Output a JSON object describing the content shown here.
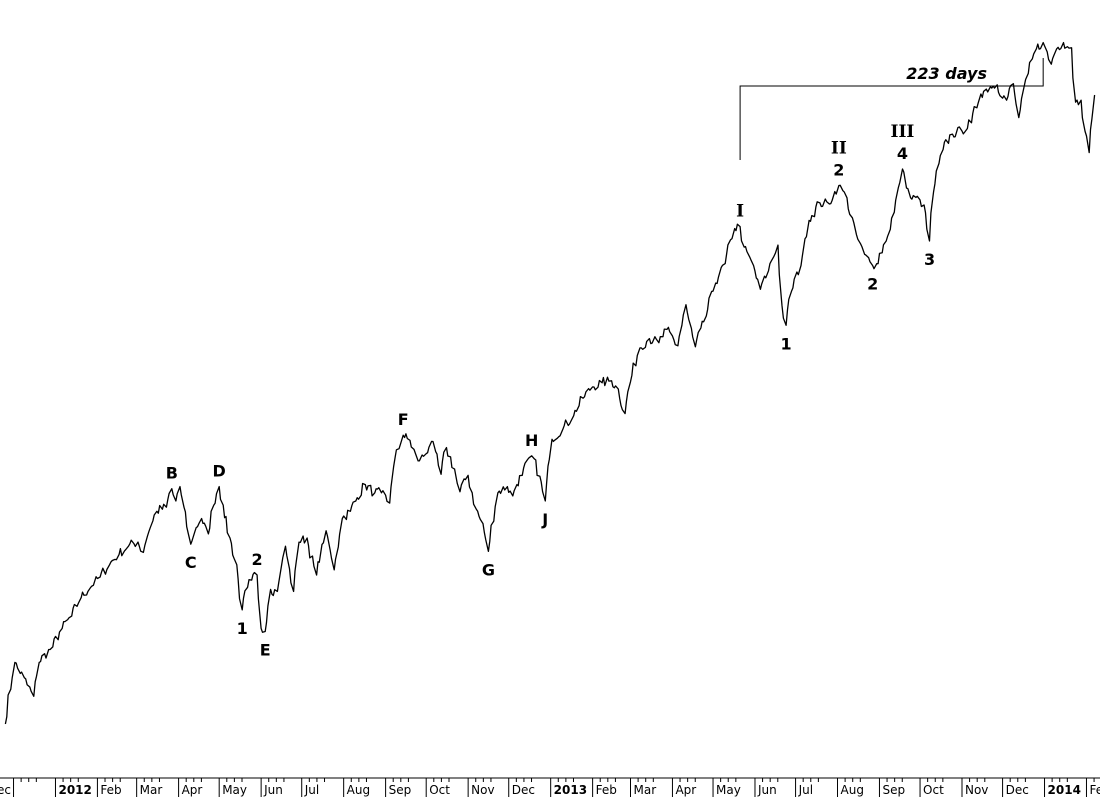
{
  "chart_data": {
    "type": "line",
    "title": "",
    "xlabel": "",
    "ylabel": "",
    "grid": false,
    "x_tick_labels": [
      {
        "date": "2011-12-01",
        "label": "ec",
        "bold": false
      },
      {
        "date": "2012-01-01",
        "label": "2012",
        "bold": true
      },
      {
        "date": "2012-02-01",
        "label": "Feb",
        "bold": false
      },
      {
        "date": "2012-03-01",
        "label": "Mar",
        "bold": false
      },
      {
        "date": "2012-04-01",
        "label": "Apr",
        "bold": false
      },
      {
        "date": "2012-05-01",
        "label": "May",
        "bold": false
      },
      {
        "date": "2012-06-01",
        "label": "Jun",
        "bold": false
      },
      {
        "date": "2012-07-01",
        "label": "Jul",
        "bold": false
      },
      {
        "date": "2012-08-01",
        "label": "Aug",
        "bold": false
      },
      {
        "date": "2012-09-01",
        "label": "Sep",
        "bold": false
      },
      {
        "date": "2012-10-01",
        "label": "Oct",
        "bold": false
      },
      {
        "date": "2012-11-01",
        "label": "Nov",
        "bold": false
      },
      {
        "date": "2012-12-01",
        "label": "Dec",
        "bold": false
      },
      {
        "date": "2013-01-01",
        "label": "2013",
        "bold": true
      },
      {
        "date": "2013-02-01",
        "label": "Feb",
        "bold": false
      },
      {
        "date": "2013-03-01",
        "label": "Mar",
        "bold": false
      },
      {
        "date": "2013-04-01",
        "label": "Apr",
        "bold": false
      },
      {
        "date": "2013-05-01",
        "label": "May",
        "bold": false
      },
      {
        "date": "2013-06-01",
        "label": "Jun",
        "bold": false
      },
      {
        "date": "2013-07-01",
        "label": "Jul",
        "bold": false
      },
      {
        "date": "2013-08-01",
        "label": "Aug",
        "bold": false
      },
      {
        "date": "2013-09-01",
        "label": "Sep",
        "bold": false
      },
      {
        "date": "2013-10-01",
        "label": "Oct",
        "bold": false
      },
      {
        "date": "2013-11-01",
        "label": "Nov",
        "bold": false
      },
      {
        "date": "2013-12-01",
        "label": "Dec",
        "bold": false
      },
      {
        "date": "2014-01-01",
        "label": "2014",
        "bold": true
      },
      {
        "date": "2014-02-01",
        "label": "Fe",
        "bold": false
      }
    ],
    "series": [
      {
        "values": [
          [
            "2011-11-25",
            1185
          ],
          [
            "2011-12-02",
            1245
          ],
          [
            "2011-12-09",
            1230
          ],
          [
            "2011-12-16",
            1212
          ],
          [
            "2011-12-20",
            1245
          ],
          [
            "2011-12-30",
            1260
          ],
          [
            "2012-01-06",
            1278
          ],
          [
            "2012-01-13",
            1290
          ],
          [
            "2012-01-20",
            1308
          ],
          [
            "2012-01-27",
            1318
          ],
          [
            "2012-02-03",
            1328
          ],
          [
            "2012-02-10",
            1340
          ],
          [
            "2012-02-17",
            1350
          ],
          [
            "2012-02-24",
            1358
          ],
          [
            "2012-03-02",
            1362
          ],
          [
            "2012-03-06",
            1352
          ],
          [
            "2012-03-09",
            1368
          ],
          [
            "2012-03-16",
            1392
          ],
          [
            "2012-03-23",
            1396
          ],
          [
            "2012-03-27",
            1414
          ],
          [
            "2012-03-30",
            1402
          ],
          [
            "2012-04-02",
            1416
          ],
          [
            "2012-04-05",
            1396
          ],
          [
            "2012-04-10",
            1360
          ],
          [
            "2012-04-13",
            1372
          ],
          [
            "2012-04-18",
            1385
          ],
          [
            "2012-04-23",
            1370
          ],
          [
            "2012-04-27",
            1398
          ],
          [
            "2012-05-01",
            1416
          ],
          [
            "2012-05-04",
            1398
          ],
          [
            "2012-05-09",
            1366
          ],
          [
            "2012-05-14",
            1340
          ],
          [
            "2012-05-18",
            1296
          ],
          [
            "2012-05-22",
            1318
          ],
          [
            "2012-05-25",
            1325
          ],
          [
            "2012-05-29",
            1330
          ],
          [
            "2012-06-01",
            1278
          ],
          [
            "2012-06-04",
            1275
          ],
          [
            "2012-06-08",
            1316
          ],
          [
            "2012-06-13",
            1314
          ],
          [
            "2012-06-19",
            1358
          ],
          [
            "2012-06-22",
            1336
          ],
          [
            "2012-06-25",
            1314
          ],
          [
            "2012-06-29",
            1362
          ],
          [
            "2012-07-05",
            1366
          ],
          [
            "2012-07-12",
            1330
          ],
          [
            "2012-07-19",
            1373
          ],
          [
            "2012-07-25",
            1335
          ],
          [
            "2012-07-31",
            1385
          ],
          [
            "2012-08-06",
            1392
          ],
          [
            "2012-08-10",
            1402
          ],
          [
            "2012-08-17",
            1418
          ],
          [
            "2012-08-24",
            1410
          ],
          [
            "2012-08-29",
            1410
          ],
          [
            "2012-09-04",
            1400
          ],
          [
            "2012-09-07",
            1436
          ],
          [
            "2012-09-14",
            1466
          ],
          [
            "2012-09-19",
            1461
          ],
          [
            "2012-09-25",
            1441
          ],
          [
            "2012-10-01",
            1448
          ],
          [
            "2012-10-05",
            1460
          ],
          [
            "2012-10-08",
            1450
          ],
          [
            "2012-10-12",
            1428
          ],
          [
            "2012-10-16",
            1454
          ],
          [
            "2012-10-22",
            1433
          ],
          [
            "2012-10-26",
            1411
          ],
          [
            "2012-11-01",
            1427
          ],
          [
            "2012-11-07",
            1394
          ],
          [
            "2012-11-12",
            1380
          ],
          [
            "2012-11-16",
            1353
          ],
          [
            "2012-11-23",
            1410
          ],
          [
            "2012-11-30",
            1416
          ],
          [
            "2012-12-04",
            1407
          ],
          [
            "2012-12-07",
            1418
          ],
          [
            "2012-12-11",
            1427
          ],
          [
            "2012-12-18",
            1446
          ],
          [
            "2012-12-20",
            1443
          ],
          [
            "2012-12-24",
            1426
          ],
          [
            "2012-12-28",
            1402
          ],
          [
            "2013-01-02",
            1462
          ],
          [
            "2013-01-10",
            1472
          ],
          [
            "2013-01-18",
            1485
          ],
          [
            "2013-01-25",
            1502
          ],
          [
            "2013-02-01",
            1513
          ],
          [
            "2013-02-08",
            1517
          ],
          [
            "2013-02-15",
            1519
          ],
          [
            "2013-02-20",
            1511
          ],
          [
            "2013-02-25",
            1487
          ],
          [
            "2013-03-01",
            1518
          ],
          [
            "2013-03-08",
            1551
          ],
          [
            "2013-03-15",
            1560
          ],
          [
            "2013-03-22",
            1556
          ],
          [
            "2013-03-28",
            1569
          ],
          [
            "2013-04-05",
            1553
          ],
          [
            "2013-04-11",
            1593
          ],
          [
            "2013-04-18",
            1552
          ],
          [
            "2013-04-26",
            1582
          ],
          [
            "2013-05-03",
            1614
          ],
          [
            "2013-05-10",
            1633
          ],
          [
            "2013-05-17",
            1667
          ],
          [
            "2013-05-21",
            1669
          ],
          [
            "2013-05-24",
            1649
          ],
          [
            "2013-05-31",
            1631
          ],
          [
            "2013-06-05",
            1608
          ],
          [
            "2013-06-11",
            1626
          ],
          [
            "2013-06-18",
            1651
          ],
          [
            "2013-06-21",
            1592
          ],
          [
            "2013-06-24",
            1573
          ],
          [
            "2013-06-28",
            1606
          ],
          [
            "2013-07-05",
            1631
          ],
          [
            "2013-07-11",
            1675
          ],
          [
            "2013-07-19",
            1692
          ],
          [
            "2013-07-26",
            1691
          ],
          [
            "2013-08-02",
            1709
          ],
          [
            "2013-08-08",
            1697
          ],
          [
            "2013-08-15",
            1661
          ],
          [
            "2013-08-21",
            1642
          ],
          [
            "2013-08-27",
            1631
          ],
          [
            "2013-08-30",
            1633
          ],
          [
            "2013-09-06",
            1655
          ],
          [
            "2013-09-12",
            1683
          ],
          [
            "2013-09-18",
            1725
          ],
          [
            "2013-09-24",
            1697
          ],
          [
            "2013-10-01",
            1695
          ],
          [
            "2013-10-04",
            1690
          ],
          [
            "2013-10-08",
            1655
          ],
          [
            "2013-10-11",
            1703
          ],
          [
            "2013-10-18",
            1744
          ],
          [
            "2013-10-25",
            1759
          ],
          [
            "2013-11-01",
            1762
          ],
          [
            "2013-11-08",
            1770
          ],
          [
            "2013-11-15",
            1798
          ],
          [
            "2013-11-22",
            1805
          ],
          [
            "2013-11-27",
            1807
          ],
          [
            "2013-12-04",
            1792
          ],
          [
            "2013-12-09",
            1808
          ],
          [
            "2013-12-13",
            1775
          ],
          [
            "2013-12-20",
            1818
          ],
          [
            "2013-12-26",
            1842
          ],
          [
            "2013-12-31",
            1848
          ],
          [
            "2014-01-06",
            1827
          ],
          [
            "2014-01-10",
            1842
          ],
          [
            "2014-01-15",
            1848
          ],
          [
            "2014-01-21",
            1843
          ],
          [
            "2014-01-24",
            1790
          ],
          [
            "2014-01-28",
            1792
          ],
          [
            "2014-02-03",
            1741
          ],
          [
            "2014-02-07",
            1797
          ]
        ]
      }
    ],
    "ylim": [
      1150,
      1870
    ],
    "annotations": [
      {
        "label": "B",
        "date": "2012-03-27",
        "value": 1414,
        "position": "above",
        "style": "wave"
      },
      {
        "label": "C",
        "date": "2012-04-10",
        "value": 1360,
        "position": "below",
        "style": "wave"
      },
      {
        "label": "D",
        "date": "2012-05-01",
        "value": 1416,
        "position": "above",
        "style": "wave"
      },
      {
        "label": "1",
        "date": "2012-05-18",
        "value": 1296,
        "position": "below",
        "style": "wave"
      },
      {
        "label": "2",
        "date": "2012-05-29",
        "value": 1330,
        "position": "above",
        "style": "wave"
      },
      {
        "label": "E",
        "date": "2012-06-04",
        "value": 1275,
        "position": "below",
        "style": "wave"
      },
      {
        "label": "F",
        "date": "2012-09-14",
        "value": 1466,
        "position": "above",
        "style": "wave"
      },
      {
        "label": "G",
        "date": "2012-11-16",
        "value": 1353,
        "position": "below",
        "style": "wave"
      },
      {
        "label": "H",
        "date": "2012-12-18",
        "value": 1446,
        "position": "above",
        "style": "wave"
      },
      {
        "label": "J",
        "date": "2012-12-28",
        "value": 1402,
        "position": "below",
        "style": "wave"
      },
      {
        "label": "I",
        "date": "2013-05-21",
        "value": 1669,
        "position": "above",
        "style": "roman"
      },
      {
        "label": "1",
        "date": "2013-06-24",
        "value": 1573,
        "position": "below",
        "style": "wave"
      },
      {
        "label": "II",
        "date": "2013-08-02",
        "value": 1709,
        "position": "above-2",
        "style": "roman"
      },
      {
        "label": "2",
        "date": "2013-08-02",
        "value": 1709,
        "position": "above",
        "style": "wave"
      },
      {
        "label": "2",
        "date": "2013-08-27",
        "value": 1631,
        "position": "below",
        "style": "wave"
      },
      {
        "label": "III",
        "date": "2013-09-18",
        "value": 1725,
        "position": "above-2",
        "style": "roman"
      },
      {
        "label": "4",
        "date": "2013-09-18",
        "value": 1725,
        "position": "above",
        "style": "wave"
      },
      {
        "label": "3",
        "date": "2013-10-08",
        "value": 1655,
        "position": "below",
        "style": "wave"
      }
    ],
    "bracket": {
      "label": "223 days",
      "start_date": "2013-05-21",
      "end_date": "2013-12-31"
    }
  }
}
